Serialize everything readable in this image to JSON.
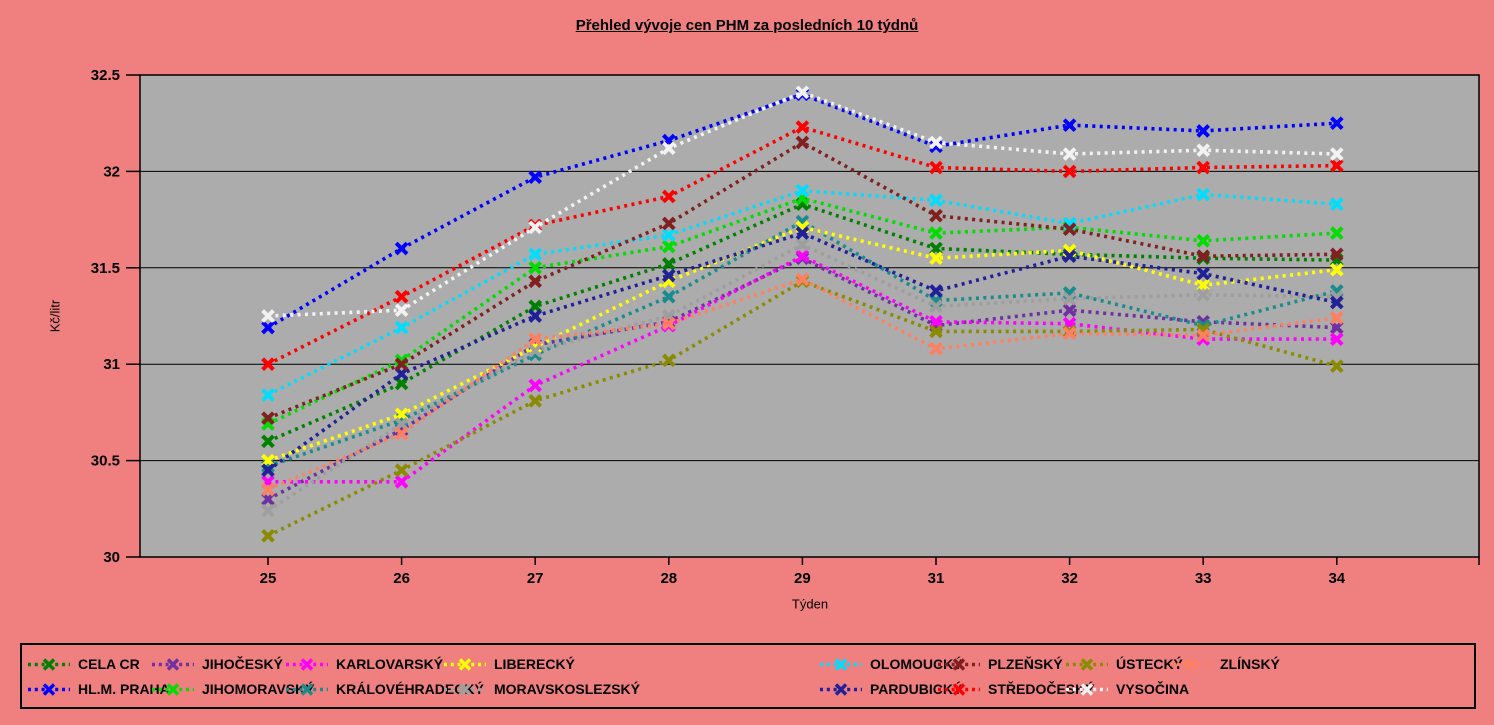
{
  "chart_data": {
    "type": "line",
    "title": "Přehled vývoje cen PHM za posledních 10 týdnů",
    "xlabel": "Týden",
    "ylabel": "Kč/litr",
    "ylim": [
      30,
      32.5
    ],
    "yticks": [
      30,
      30.5,
      31,
      31.5,
      32,
      32.5
    ],
    "categories": [
      "25",
      "26",
      "27",
      "28",
      "29",
      "31",
      "32",
      "33",
      "34"
    ],
    "grid": true,
    "line_style": "dotted",
    "marker": "x",
    "legend_position": "bottom",
    "colors": {
      "page_background": "#F08080",
      "plot_background": "#ACACAC",
      "grid_line": "#000000",
      "text": "#000000"
    },
    "series": [
      {
        "name": "CELA CR",
        "color": "#008000",
        "values": [
          30.6,
          30.9,
          31.3,
          31.52,
          31.83,
          31.6,
          31.57,
          31.55,
          31.54
        ]
      },
      {
        "name": "HL.M. PRAHA",
        "color": "#0000FF",
        "values": [
          31.19,
          31.6,
          31.97,
          32.16,
          32.4,
          32.13,
          32.24,
          32.21,
          32.25
        ]
      },
      {
        "name": "JIHOČESKÝ",
        "color": "#7030A0",
        "values": [
          30.3,
          30.66,
          31.1,
          31.22,
          31.55,
          31.2,
          31.28,
          31.22,
          31.19
        ]
      },
      {
        "name": "JIHOMORAVSKÝ",
        "color": "#00DD00",
        "values": [
          30.69,
          31.02,
          31.5,
          31.61,
          31.86,
          31.68,
          31.71,
          31.64,
          31.68
        ]
      },
      {
        "name": "KARLOVARSKÝ",
        "color": "#FF00FF",
        "values": [
          30.39,
          30.39,
          30.89,
          31.2,
          31.56,
          31.22,
          31.21,
          31.13,
          31.13
        ]
      },
      {
        "name": "KRÁLOVÉHRADECKÝ",
        "color": "#1A8C8C",
        "values": [
          30.47,
          30.71,
          31.05,
          31.35,
          31.74,
          31.33,
          31.37,
          31.2,
          31.38
        ]
      },
      {
        "name": "LIBERECKÝ",
        "color": "#FFFF00",
        "values": [
          30.5,
          30.74,
          31.09,
          31.43,
          31.71,
          31.55,
          31.59,
          31.41,
          31.49
        ]
      },
      {
        "name": "MORAVSKOSLEZSKÝ",
        "color": "#9E9E9E",
        "values": [
          30.24,
          30.69,
          31.07,
          31.25,
          31.62,
          31.3,
          31.34,
          31.36,
          31.35
        ]
      },
      {
        "name": "OLOMOUCKÝ",
        "color": "#00DDFF",
        "values": [
          30.84,
          31.19,
          31.57,
          31.67,
          31.9,
          31.85,
          31.73,
          31.88,
          31.83
        ]
      },
      {
        "name": "PARDUBICKÝ",
        "color": "#202099",
        "values": [
          30.45,
          30.95,
          31.25,
          31.46,
          31.68,
          31.38,
          31.56,
          31.47,
          31.32
        ]
      },
      {
        "name": "PLZEŇSKÝ",
        "color": "#802020",
        "values": [
          30.72,
          31.0,
          31.43,
          31.73,
          32.15,
          31.77,
          31.7,
          31.56,
          31.57
        ]
      },
      {
        "name": "STŘEDOČESKÝ",
        "color": "#FF0000",
        "values": [
          31.0,
          31.35,
          31.72,
          31.87,
          32.23,
          32.02,
          32.0,
          32.02,
          32.03
        ]
      },
      {
        "name": "ÚSTECKÝ",
        "color": "#8B8B00",
        "values": [
          30.11,
          30.45,
          30.81,
          31.02,
          31.43,
          31.17,
          31.17,
          31.18,
          30.99
        ]
      },
      {
        "name": "VYSOČINA",
        "color": "#F2F2F2",
        "values": [
          31.25,
          31.28,
          31.71,
          32.12,
          32.41,
          32.15,
          32.09,
          32.11,
          32.09
        ]
      },
      {
        "name": "ZLÍNSKÝ",
        "color": "#FF8060",
        "values": [
          30.35,
          30.64,
          31.13,
          31.21,
          31.44,
          31.08,
          31.16,
          31.15,
          31.24
        ]
      }
    ],
    "legend_rows": [
      [
        "CELA CR",
        "JIHOČESKÝ",
        "KARLOVARSKÝ",
        "LIBERECKÝ",
        "OLOMOUCKÝ",
        "PLZEŇSKÝ",
        "ÚSTECKÝ",
        "ZLÍNSKÝ"
      ],
      [
        "HL.M. PRAHA",
        "JIHOMORAVSKÝ",
        "KRÁLOVÉHRADECKÝ",
        "MORAVSKOSLEZSKÝ",
        "PARDUBICKÝ",
        "STŘEDOČESKÝ",
        "VYSOČINA"
      ]
    ]
  }
}
